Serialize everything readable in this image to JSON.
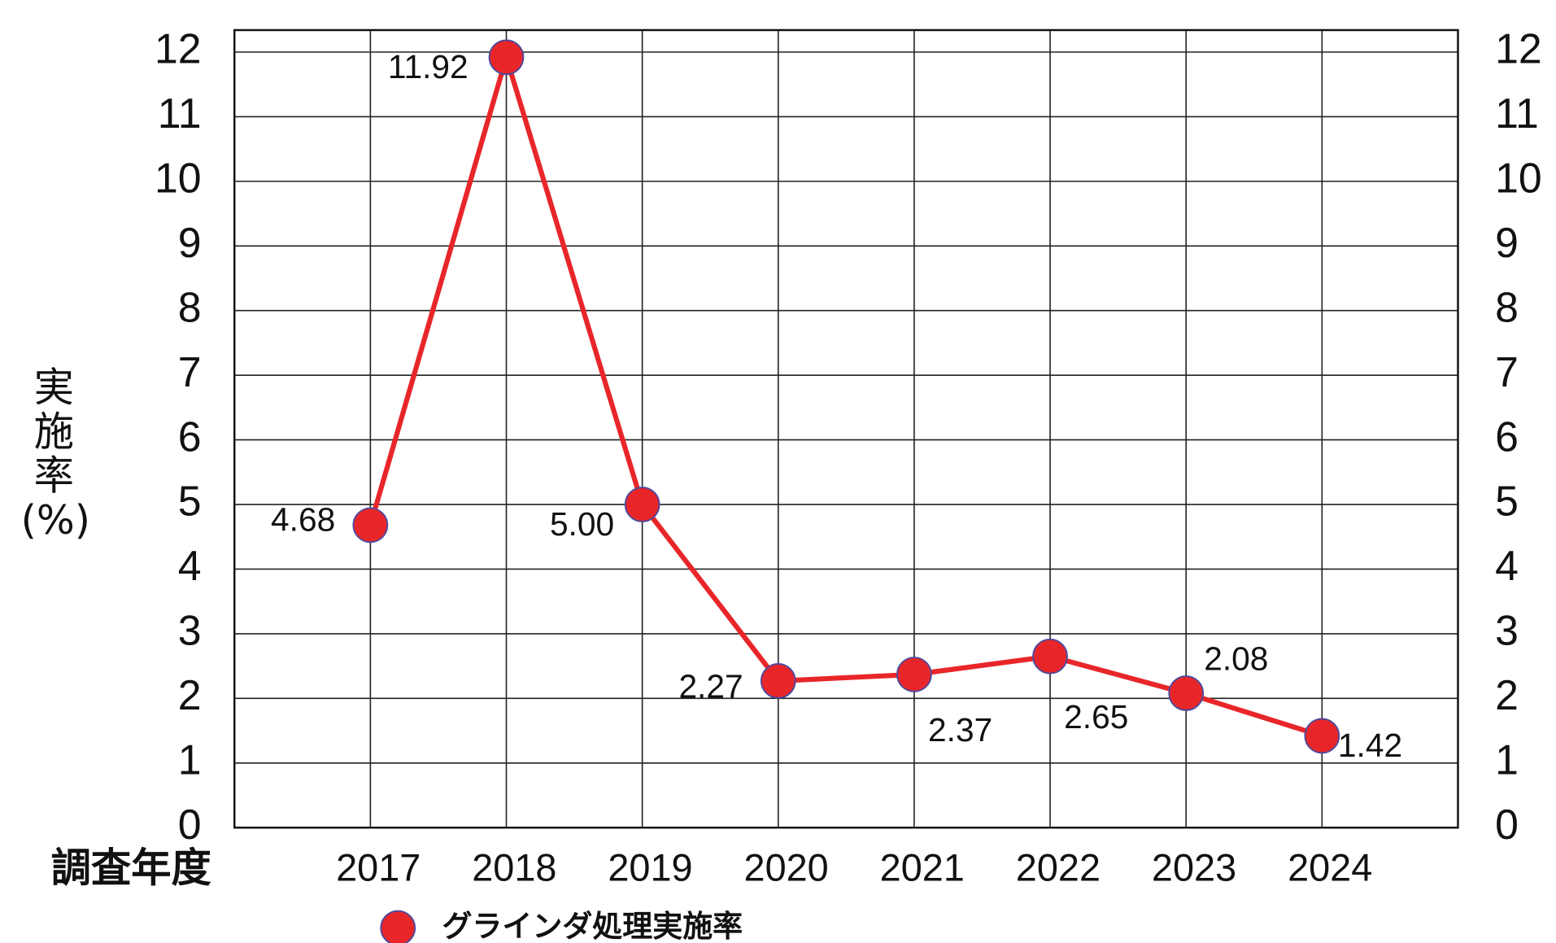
{
  "chart_data": {
    "type": "line",
    "ylabel": "実施率(%)",
    "xlabel": "調査年度",
    "categories": [
      "2017",
      "2018",
      "2019",
      "2020",
      "2021",
      "2022",
      "2023",
      "2024"
    ],
    "series": [
      {
        "name": "グラインダ処理実施率",
        "color": "#e8262a",
        "values": [
          4.68,
          11.92,
          5.0,
          2.27,
          2.37,
          2.65,
          2.08,
          1.42
        ],
        "value_labels": [
          "4.68",
          "11.92",
          "5.00",
          "2.27",
          "2.37",
          "2.65",
          "2.08",
          "1.42"
        ]
      }
    ],
    "ylim": [
      0,
      12.34
    ],
    "yticks": [
      0,
      1,
      2,
      3,
      4,
      5,
      6,
      7,
      8,
      9,
      10,
      11,
      12
    ],
    "grid": true,
    "legend": "bottom"
  }
}
